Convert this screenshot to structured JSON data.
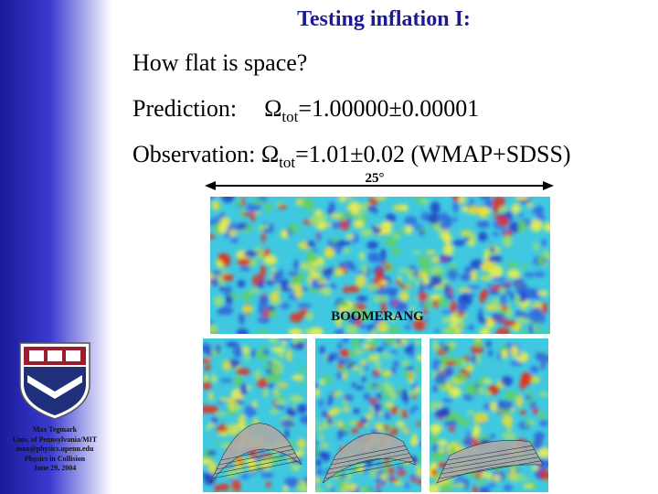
{
  "title": "Testing inflation I:",
  "lines": [
    {
      "text": "How flat is space?"
    },
    {
      "label": "Prediction:",
      "symbol": "Ω",
      "subscript": "tot",
      "text": "=1.00000±0.00001"
    },
    {
      "label": "Observation:",
      "symbol": "Ω",
      "subscript": "tot",
      "text": "=1.01±0.02 (WMAP+SDSS)"
    }
  ],
  "figure": {
    "scale_label": "25°",
    "map_label": "BOOMERANG"
  },
  "sidebar": [
    "Max Tegmark",
    "Univ. of Pennsylvania/MIT",
    "max@physics.upenn.edu",
    "Physics in Collision",
    "June 29, 2004"
  ]
}
